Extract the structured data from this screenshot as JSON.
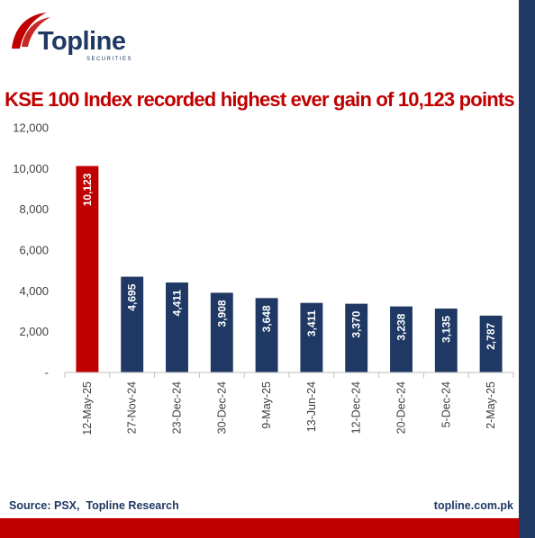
{
  "brand": {
    "name": "Topline",
    "tagline": "SECURITIES"
  },
  "colors": {
    "highlight": "#c00000",
    "bar": "#1f3864",
    "accent_stripe": "#1f3864",
    "bottom_band": "#c00000"
  },
  "chart_data": {
    "type": "bar",
    "title": "KSE 100 Index recorded highest ever gain of 10,123 points",
    "categories": [
      "12-May-25",
      "27-Nov-24",
      "23-Dec-24",
      "30-Dec-24",
      "9-May-25",
      "13-Jun-24",
      "12-Dec-24",
      "20-Dec-24",
      "5-Dec-24",
      "2-May-25"
    ],
    "values": [
      10123,
      4695,
      4411,
      3908,
      3648,
      3411,
      3370,
      3238,
      3135,
      2787
    ],
    "value_labels": [
      "10,123",
      "4,695",
      "4,411",
      "3,908",
      "3,648",
      "3,411",
      "3,370",
      "3,238",
      "3,135",
      "2,787"
    ],
    "highlight_index": 0,
    "ylim": [
      0,
      12000
    ],
    "yticks": [
      0,
      2000,
      4000,
      6000,
      8000,
      10000,
      12000
    ],
    "ytick_labels": [
      "-",
      "2,000",
      "4,000",
      "6,000",
      "8,000",
      "10,000",
      "12,000"
    ],
    "grid": false,
    "legend": "none"
  },
  "footer": {
    "source": "Source: PSX,  Topline Research",
    "website": "topline.com.pk"
  }
}
